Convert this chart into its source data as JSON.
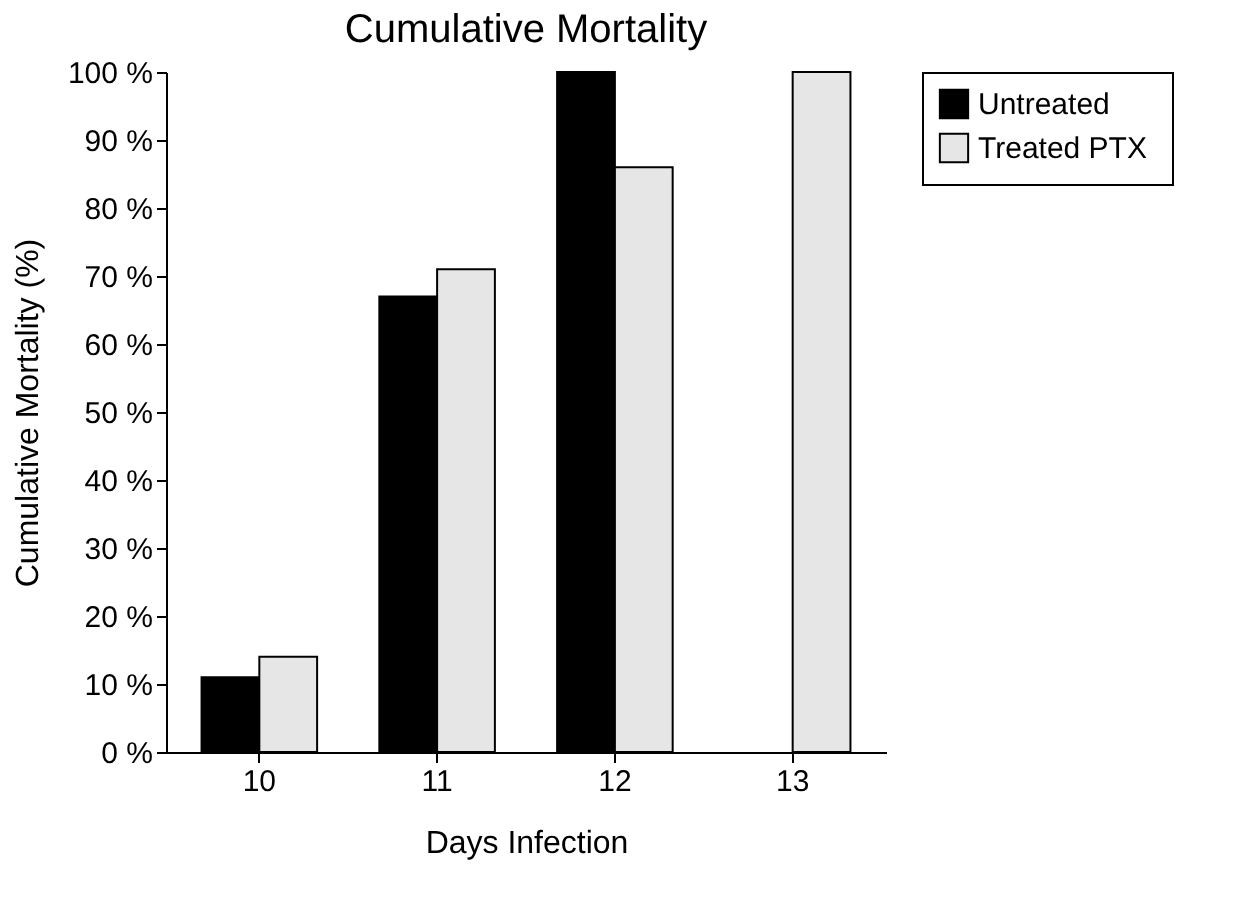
{
  "chart_data": {
    "type": "bar",
    "title": "Cumulative Mortality",
    "xlabel": "Days Infection",
    "ylabel": "Cumulative Mortality (%)",
    "categories": [
      "10",
      "11",
      "12",
      "13"
    ],
    "series": [
      {
        "name": "Untreated",
        "color": "#000000",
        "values": [
          11,
          67,
          100,
          null
        ]
      },
      {
        "name": "Treated  PTX",
        "color": "#e6e6e6",
        "values": [
          14,
          71,
          86,
          100
        ]
      }
    ],
    "ylim": [
      0,
      100
    ],
    "yticks": [
      {
        "value": 0,
        "label": "0 %"
      },
      {
        "value": 10,
        "label": "10 %"
      },
      {
        "value": 20,
        "label": "20 %"
      },
      {
        "value": 30,
        "label": "30 %"
      },
      {
        "value": 40,
        "label": "40 %"
      },
      {
        "value": 50,
        "label": "50 %"
      },
      {
        "value": 60,
        "label": "60 %"
      },
      {
        "value": 70,
        "label": "70 %"
      },
      {
        "value": 80,
        "label": "80 %"
      },
      {
        "value": 90,
        "label": "90 %"
      },
      {
        "value": 100,
        "label": "100 %"
      }
    ],
    "grid": false,
    "legend": "right"
  }
}
